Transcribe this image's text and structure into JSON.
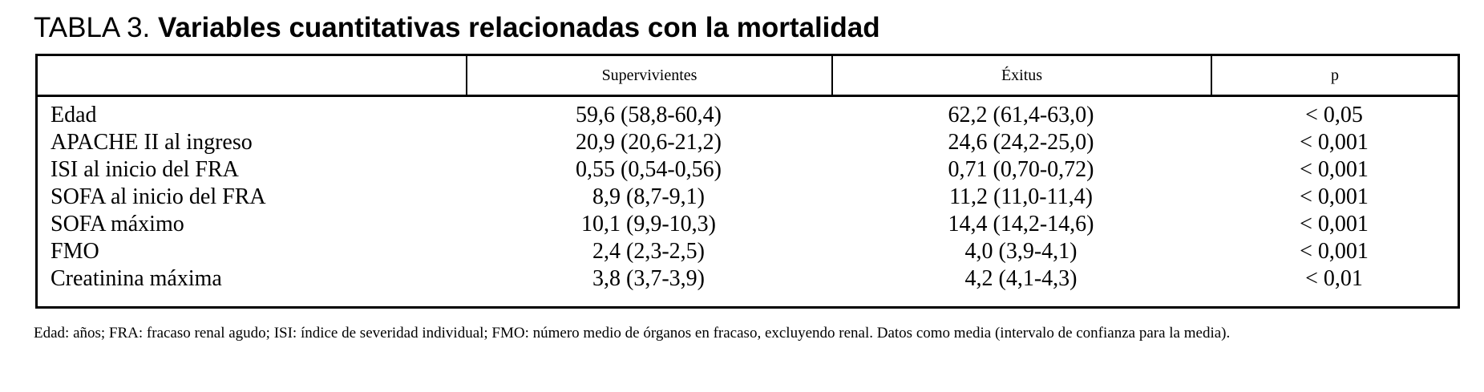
{
  "title": {
    "prefix": "TABLA 3.",
    "text": "Variables cuantitativas relacionadas con la mortalidad"
  },
  "table": {
    "headers": [
      "",
      "Supervivientes",
      "Éxitus",
      "p"
    ],
    "rows": [
      {
        "label": "Edad",
        "supervivientes": "59,6 (58,8-60,4)",
        "exitus": "62,2 (61,4-63,0)",
        "p": "< 0,05"
      },
      {
        "label": "APACHE II al ingreso",
        "supervivientes": "20,9 (20,6-21,2)",
        "exitus": "24,6 (24,2-25,0)",
        "p": "< 0,001"
      },
      {
        "label": "ISI al inicio del FRA",
        "supervivientes": "0,55 (0,54-0,56)",
        "exitus": "0,71 (0,70-0,72)",
        "p": "< 0,001"
      },
      {
        "label": "SOFA al inicio del FRA",
        "supervivientes": "8,9 (8,7-9,1)",
        "exitus": "11,2 (11,0-11,4)",
        "p": "< 0,001"
      },
      {
        "label": "SOFA máximo",
        "supervivientes": "10,1 (9,9-10,3)",
        "exitus": "14,4 (14,2-14,6)",
        "p": "< 0,001"
      },
      {
        "label": "FMO",
        "supervivientes": "2,4 (2,3-2,5)",
        "exitus": "4,0 (3,9-4,1)",
        "p": "< 0,001"
      },
      {
        "label": "Creatinina máxima",
        "supervivientes": "3,8 (3,7-3,9)",
        "exitus": "4,2 (4,1-4,3)",
        "p": "< 0,01"
      }
    ]
  },
  "footnote": "Edad: años; FRA: fracaso renal agudo; ISI: índice de severidad individual; FMO: número medio de órganos en fracaso, excluyendo renal. Datos como media (intervalo de confianza para la media)."
}
